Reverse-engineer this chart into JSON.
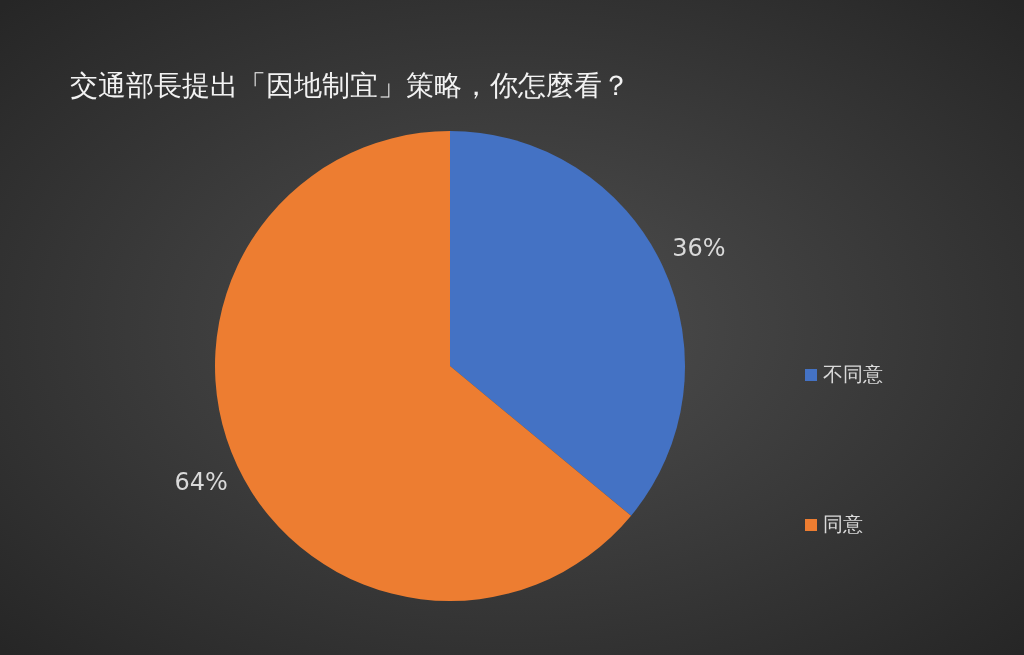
{
  "chart_data": {
    "type": "pie",
    "title": "交通部長提出「因地制宜」策略，你怎麼看？",
    "categories": [
      "不同意",
      "同意"
    ],
    "values": [
      36,
      64
    ],
    "colors": [
      "#4472c4",
      "#ed7d31"
    ],
    "value_labels": [
      "36%",
      "64%"
    ],
    "legend": "right"
  }
}
